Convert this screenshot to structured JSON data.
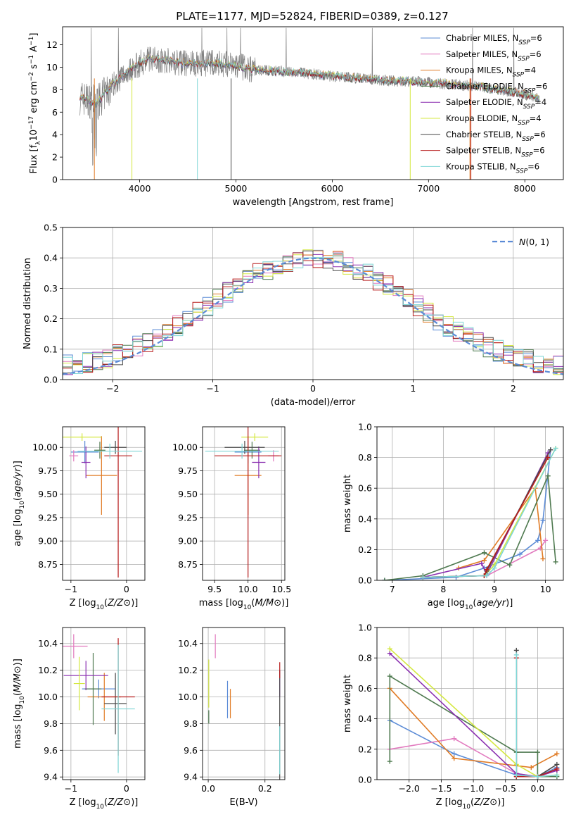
{
  "figure_title": "PLATE=1177, MJD=52824, FIBERID=0389, z=0.127",
  "colors": {
    "Chabrier MILES": "#5b8bd6",
    "Salpeter MILES": "#e27bbf",
    "Kroupa MILES": "#e07b25",
    "Chabrier ELODIE": "#4f7a50",
    "Salpeter ELODIE": "#8a2fb0",
    "Kroupa ELODIE": "#d4e840",
    "Chabrier STELIB": "#4a4a4a",
    "Salpeter STELIB": "#b81d1d",
    "Kroupa STELIB": "#7fd6d6",
    "gauss": "#5b8bd6"
  },
  "chart_data": [
    {
      "id": "spectrum",
      "type": "line",
      "title": "PLATE=1177, MJD=52824, FIBERID=0389, z=0.127",
      "xlabel": "wavelength [Angstrom, rest frame]",
      "ylabel": "Flux [f_λ 10^-17 erg cm^-2 s^-1 A^-1]",
      "xlim": [
        3200,
        8400
      ],
      "ylim": [
        0,
        13.6
      ],
      "xticks": [
        4000,
        5000,
        6000,
        7000,
        8000
      ],
      "yticks": [
        0,
        2,
        4,
        6,
        8,
        10,
        12
      ],
      "grid": false,
      "legend_position": "upper-right",
      "data_series": "observed (gray)",
      "spectrum_anchor_x": [
        3380,
        3500,
        3550,
        3700,
        3900,
        4100,
        4300,
        4500,
        4800,
        5000,
        5200,
        5500,
        5800,
        6000,
        6300,
        6600,
        6900,
        7200,
        7500,
        7800,
        8000,
        8150
      ],
      "spectrum_anchor_y": [
        7.3,
        7.0,
        6.7,
        8.3,
        9.8,
        10.8,
        10.6,
        10.3,
        10.4,
        10.1,
        9.8,
        9.6,
        9.4,
        9.2,
        9.0,
        8.8,
        8.7,
        8.5,
        8.3,
        7.9,
        7.6,
        7.2
      ],
      "legend": [
        {
          "label": "Chabrier MILES",
          "sub": "SSP",
          "n": "=6"
        },
        {
          "label": "Salpeter MILES",
          "sub": "SSP",
          "n": "=6"
        },
        {
          "label": "Kroupa MILES",
          "sub": "SSP",
          "n": "=4"
        },
        {
          "label": "Chabrier ELODIE",
          "sub": "SSP",
          "n": "=6"
        },
        {
          "label": "Salpeter ELODIE",
          "sub": "SSP",
          "n": "=4"
        },
        {
          "label": "Kroupa ELODIE",
          "sub": "SSP",
          "n": "=4"
        },
        {
          "label": "Chabrier STELIB",
          "sub": "SSP",
          "n": "=6"
        },
        {
          "label": "Salpeter STELIB",
          "sub": "SSP",
          "n": "=6"
        },
        {
          "label": "Kroupa STELIB",
          "sub": "SSP",
          "n": "=6"
        }
      ]
    },
    {
      "id": "residual_hist",
      "type": "line",
      "xlabel": "(data-model)/error",
      "ylabel": "Normed distribution",
      "xlim": [
        -2.5,
        2.5
      ],
      "ylim": [
        0,
        0.5
      ],
      "xticks": [
        -2,
        -1,
        0,
        1,
        2
      ],
      "yticks": [
        0.0,
        0.1,
        0.2,
        0.3,
        0.4,
        0.5
      ],
      "grid": true,
      "legend_position": "upper-right",
      "legend": [
        {
          "label": "N(0, 1)"
        }
      ],
      "bin_edges": [
        -2.5,
        -2.4,
        -2.3,
        -2.2,
        -2.1,
        -2.0,
        -1.9,
        -1.8,
        -1.7,
        -1.6,
        -1.5,
        -1.4,
        -1.3,
        -1.2,
        -1.1,
        -1.0,
        -0.9,
        -0.8,
        -0.7,
        -0.6,
        -0.5,
        -0.4,
        -0.3,
        -0.2,
        -0.1,
        0.0,
        0.1,
        0.2,
        0.3,
        0.4,
        0.5,
        0.6,
        0.7,
        0.8,
        0.9,
        1.0,
        1.1,
        1.2,
        1.3,
        1.4,
        1.5,
        1.6,
        1.7,
        1.8,
        1.9,
        2.0,
        2.1,
        2.2,
        2.3,
        2.4,
        2.5
      ]
    },
    {
      "id": "age_vs_Z",
      "type": "scatter",
      "xlabel": "Z [log10(Z/Z⊙)]",
      "ylabel": "age [log10(age/yr)]",
      "xlim": [
        -1.15,
        0.33
      ],
      "ylim": [
        8.58,
        10.22
      ],
      "xticks": [
        -1,
        0
      ],
      "yticks": [
        8.75,
        9.0,
        9.25,
        9.5,
        9.75,
        10.0
      ],
      "grid": true,
      "points": [
        {
          "series": "Chabrier MILES",
          "x": -0.75,
          "y": 9.95,
          "xerr": 0.25,
          "yerr": 0.12
        },
        {
          "series": "Salpeter MILES",
          "x": -0.95,
          "y": 9.91,
          "xerr": 0.08,
          "yerr": 0.06
        },
        {
          "series": "Kroupa MILES",
          "x": -0.45,
          "y": 9.7,
          "xerr": 0.28,
          "yerr": 0.42
        },
        {
          "series": "Chabrier ELODIE",
          "x": -0.48,
          "y": 9.97,
          "xerr": 0.1,
          "yerr": 0.09
        },
        {
          "series": "Salpeter ELODIE",
          "x": -0.73,
          "y": 9.84,
          "xerr": 0.08,
          "yerr": 0.17
        },
        {
          "series": "Kroupa ELODIE",
          "x": -0.8,
          "y": 10.11,
          "xerr": 0.35,
          "yerr": 0.04
        },
        {
          "series": "Chabrier STELIB",
          "x": -0.2,
          "y": 10.0,
          "xerr": 0.2,
          "yerr": 0.07
        },
        {
          "series": "Salpeter STELIB",
          "x": -0.15,
          "y": 9.91,
          "xerr": 0.25,
          "yerr": 1.3
        },
        {
          "series": "Kroupa STELIB",
          "x": -0.3,
          "y": 9.96,
          "xerr": 0.58,
          "yerr": 0.08
        }
      ]
    },
    {
      "id": "age_vs_mass",
      "type": "scatter",
      "xlabel": "mass [log10(M/M⊙)]",
      "xlim": [
        9.32,
        10.55
      ],
      "ylim": [
        8.58,
        10.22
      ],
      "xticks": [
        9.5,
        10.0,
        10.5
      ],
      "yticks": [
        8.75,
        9.0,
        9.25,
        9.5,
        9.75,
        10.0
      ],
      "grid": true,
      "points": [
        {
          "series": "Chabrier MILES",
          "x": 10.0,
          "y": 9.95,
          "xerr": 0.2,
          "yerr": 0.12
        },
        {
          "series": "Salpeter MILES",
          "x": 10.38,
          "y": 9.91,
          "xerr": 0.08,
          "yerr": 0.06
        },
        {
          "series": "Kroupa MILES",
          "x": 10.0,
          "y": 9.7,
          "xerr": 0.2,
          "yerr": 0.42
        },
        {
          "series": "Chabrier ELODIE",
          "x": 10.06,
          "y": 9.97,
          "xerr": 0.12,
          "yerr": 0.09
        },
        {
          "series": "Salpeter ELODIE",
          "x": 10.16,
          "y": 9.84,
          "xerr": 0.1,
          "yerr": 0.17
        },
        {
          "series": "Kroupa ELODIE",
          "x": 10.1,
          "y": 10.11,
          "xerr": 0.2,
          "yerr": 0.04
        },
        {
          "series": "Chabrier STELIB",
          "x": 9.95,
          "y": 10.0,
          "xerr": 0.3,
          "yerr": 0.07
        },
        {
          "series": "Salpeter STELIB",
          "x": 10.0,
          "y": 9.91,
          "xerr": 0.5,
          "yerr": 1.3
        },
        {
          "series": "Kroupa STELIB",
          "x": 9.91,
          "y": 9.96,
          "xerr": 0.55,
          "yerr": 0.08
        }
      ]
    },
    {
      "id": "weight_vs_age",
      "type": "line",
      "xlabel": "age [log10(age/yr)]",
      "ylabel": "mass weight",
      "xlim": [
        6.7,
        10.35
      ],
      "ylim": [
        0,
        1.0
      ],
      "xticks": [
        7,
        8,
        9,
        10
      ],
      "yticks": [
        0.0,
        0.2,
        0.4,
        0.6,
        0.8,
        1.0
      ],
      "grid": true,
      "series": [
        {
          "name": "Chabrier MILES",
          "x": [
            6.85,
            8.25,
            8.8,
            9.5,
            9.85,
            9.95,
            10.1
          ],
          "y": [
            0.0,
            0.02,
            0.08,
            0.17,
            0.26,
            0.39,
            0.85
          ]
        },
        {
          "name": "Salpeter MILES",
          "x": [
            7.6,
            8.85,
            9.9,
            10.0
          ],
          "y": [
            0.02,
            0.03,
            0.21,
            0.26
          ]
        },
        {
          "name": "Kroupa MILES",
          "x": [
            8.3,
            8.8,
            9.8,
            9.95
          ],
          "y": [
            0.08,
            0.13,
            0.6,
            0.14
          ]
        },
        {
          "name": "Chabrier ELODIE",
          "x": [
            6.85,
            7.6,
            8.8,
            9.3,
            10.05,
            10.2
          ],
          "y": [
            0.0,
            0.03,
            0.18,
            0.1,
            0.68,
            0.12
          ]
        },
        {
          "name": "Salpeter ELODIE",
          "x": [
            7.6,
            8.75,
            8.85,
            10.05
          ],
          "y": [
            0.02,
            0.11,
            0.04,
            0.83
          ]
        },
        {
          "name": "Kroupa ELODIE",
          "x": [
            7.6,
            8.8,
            9.0,
            10.2
          ],
          "y": [
            0.02,
            0.03,
            0.1,
            0.86
          ]
        },
        {
          "name": "Chabrier STELIB",
          "x": [
            7.6,
            8.8,
            8.85,
            10.1
          ],
          "y": [
            0.02,
            0.03,
            0.06,
            0.85
          ]
        },
        {
          "name": "Salpeter STELIB",
          "x": [
            7.6,
            8.8,
            8.85,
            10.05
          ],
          "y": [
            0.02,
            0.03,
            0.07,
            0.8
          ]
        },
        {
          "name": "Kroupa STELIB",
          "x": [
            7.6,
            8.85,
            9.0,
            10.2
          ],
          "y": [
            0.02,
            0.03,
            0.08,
            0.86
          ]
        }
      ]
    },
    {
      "id": "mass_vs_Z",
      "type": "scatter",
      "xlabel": "Z [log10(Z/Z⊙)]",
      "ylabel": "mass [log10(M/M⊙)]",
      "xlim": [
        -1.15,
        0.33
      ],
      "ylim": [
        9.38,
        10.52
      ],
      "xticks": [
        -1,
        0
      ],
      "yticks": [
        9.4,
        9.6,
        9.8,
        10.0,
        10.2,
        10.4
      ],
      "grid": true,
      "points": [
        {
          "series": "Chabrier MILES",
          "x": -0.5,
          "y": 10.06,
          "xerr": 0.3,
          "yerr": 0.07
        },
        {
          "series": "Salpeter MILES",
          "x": -0.95,
          "y": 10.38,
          "xerr": 0.25,
          "yerr": 0.09
        },
        {
          "series": "Kroupa MILES",
          "x": -0.4,
          "y": 10.0,
          "xerr": 0.3,
          "yerr": 0.18
        },
        {
          "series": "Chabrier ELODIE",
          "x": -0.6,
          "y": 10.06,
          "xerr": 0.15,
          "yerr": 0.27
        },
        {
          "series": "Salpeter ELODIE",
          "x": -0.73,
          "y": 10.16,
          "xerr": 0.4,
          "yerr": 0.11
        },
        {
          "series": "Kroupa ELODIE",
          "x": -0.85,
          "y": 10.1,
          "xerr": 0.1,
          "yerr": 0.2
        },
        {
          "series": "Chabrier STELIB",
          "x": -0.2,
          "y": 9.95,
          "xerr": 0.2,
          "yerr": 0.23
        },
        {
          "series": "Salpeter STELIB",
          "x": -0.15,
          "y": 10.0,
          "xerr": 0.3,
          "yerr": 0.44
        },
        {
          "series": "Kroupa STELIB",
          "x": -0.15,
          "y": 9.91,
          "xerr": 0.3,
          "yerr": 0.48
        }
      ]
    },
    {
      "id": "mass_vs_EBV",
      "type": "scatter",
      "xlabel": "E(B-V)",
      "xlim": [
        -0.02,
        0.27
      ],
      "ylim": [
        9.38,
        10.52
      ],
      "xticks": [
        0.0,
        0.2
      ],
      "yticks": [
        9.4,
        9.6,
        9.8,
        10.0,
        10.2,
        10.4
      ],
      "grid": true,
      "points": [
        {
          "series": "Chabrier MILES",
          "x": 0.068,
          "y": 9.98,
          "yerr": 0.14
        },
        {
          "series": "Salpeter MILES",
          "x": 0.025,
          "y": 10.38,
          "yerr": 0.09
        },
        {
          "series": "Kroupa MILES",
          "x": 0.078,
          "y": 9.95,
          "yerr": 0.11
        },
        {
          "series": "Chabrier ELODIE",
          "x": 0.002,
          "y": 9.85,
          "yerr": 0.05
        },
        {
          "series": "Salpeter ELODIE",
          "x": 0.252,
          "y": 10.1,
          "yerr": 0.1
        },
        {
          "series": "Kroupa ELODIE",
          "x": 0.002,
          "y": 10.1,
          "yerr": 0.18
        },
        {
          "series": "Chabrier STELIB",
          "x": 0.252,
          "y": 9.7,
          "yerr": 0.5
        },
        {
          "series": "Salpeter STELIB",
          "x": 0.252,
          "y": 10.2,
          "yerr": 0.06
        },
        {
          "series": "Kroupa STELIB",
          "x": 0.252,
          "y": 9.6,
          "yerr": 0.18
        }
      ]
    },
    {
      "id": "weight_vs_Z",
      "type": "line",
      "xlabel": "Z [log10(Z/Z⊙)]",
      "ylabel": "mass weight",
      "xlim": [
        -2.5,
        0.4
      ],
      "ylim": [
        0,
        1.0
      ],
      "xticks": [
        -2.0,
        -1.5,
        -1.0,
        -0.5,
        0.0
      ],
      "yticks": [
        0.0,
        0.2,
        0.4,
        0.6,
        0.8,
        1.0
      ],
      "grid": true,
      "series": [
        {
          "name": "Chabrier MILES",
          "x": [
            -2.3,
            -1.3,
            -0.33,
            0.0,
            0.3
          ],
          "y": [
            0.39,
            0.17,
            0.03,
            0.02,
            0.08
          ]
        },
        {
          "name": "Salpeter MILES",
          "x": [
            -2.3,
            -1.3,
            -0.33,
            0.0,
            0.3
          ],
          "y": [
            0.2,
            0.27,
            0.04,
            0.02,
            0.06
          ]
        },
        {
          "name": "Kroupa MILES",
          "x": [
            -2.3,
            -1.3,
            -0.1,
            0.3
          ],
          "y": [
            0.6,
            0.14,
            0.08,
            0.17
          ]
        },
        {
          "name": "Chabrier ELODIE",
          "x": [
            -2.3,
            -2.3,
            -0.33,
            0.0,
            0.0,
            0.3
          ],
          "y": [
            0.12,
            0.68,
            0.18,
            0.18,
            0.02,
            0.02
          ]
        },
        {
          "name": "Salpeter ELODIE",
          "x": [
            -2.3,
            -0.33,
            0.0,
            0.3
          ],
          "y": [
            0.83,
            0.04,
            0.02,
            0.06
          ]
        },
        {
          "name": "Kroupa ELODIE",
          "x": [
            -2.3,
            -0.33,
            0.0,
            0.3
          ],
          "y": [
            0.86,
            0.1,
            0.02,
            0.03
          ]
        },
        {
          "name": "Chabrier STELIB",
          "x": [
            -0.33,
            -0.33,
            0.0,
            0.3
          ],
          "y": [
            0.85,
            0.02,
            0.02,
            0.1
          ]
        },
        {
          "name": "Salpeter STELIB",
          "x": [
            -0.33,
            -0.33,
            0.0,
            0.3
          ],
          "y": [
            0.8,
            0.02,
            0.02,
            0.07
          ]
        },
        {
          "name": "Kroupa STELIB",
          "x": [
            -0.33,
            -0.33,
            0.0,
            0.3
          ],
          "y": [
            0.82,
            0.03,
            0.02,
            0.03
          ]
        }
      ]
    }
  ]
}
